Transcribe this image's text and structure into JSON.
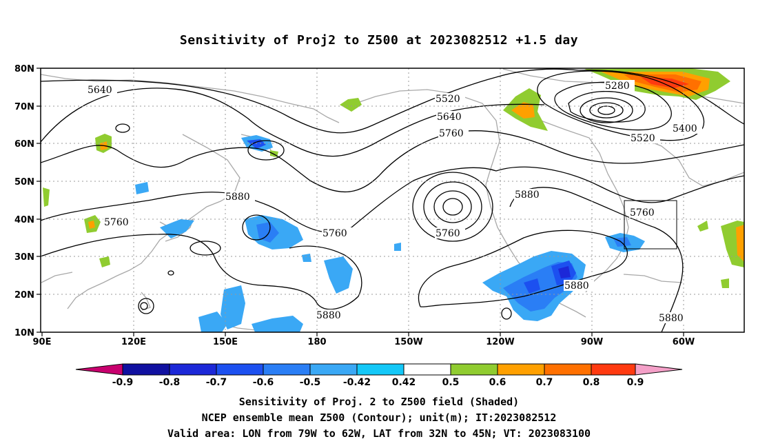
{
  "title": "Sensitivity of Proj2 to Z500 at 2023082512 +1.5 day",
  "axes": {
    "lat_labels": [
      "80N",
      "70N",
      "60N",
      "50N",
      "40N",
      "30N",
      "20N",
      "10N"
    ],
    "lon_labels": [
      "90E",
      "120E",
      "150E",
      "180",
      "150W",
      "120W",
      "90W",
      "60W"
    ]
  },
  "contour_labels": [
    {
      "text": "5640"
    },
    {
      "text": "5760"
    },
    {
      "text": "5880"
    },
    {
      "text": "5760"
    },
    {
      "text": "5880"
    },
    {
      "text": "5520"
    },
    {
      "text": "5640"
    },
    {
      "text": "5760"
    },
    {
      "text": "5760"
    },
    {
      "text": "5880"
    },
    {
      "text": "5280"
    },
    {
      "text": "5400"
    },
    {
      "text": "5520"
    },
    {
      "text": "5760"
    },
    {
      "text": "5880"
    },
    {
      "text": "5880"
    }
  ],
  "colorbar": {
    "labels": [
      "-0.9",
      "-0.8",
      "-0.7",
      "-0.6",
      "-0.5",
      "-0.42",
      "0.42",
      "0.5",
      "0.6",
      "0.7",
      "0.8",
      "0.9"
    ],
    "colors": [
      "#c8006e",
      "#1010a0",
      "#1c28d8",
      "#1c50f0",
      "#2a7ef5",
      "#3aa8f5",
      "#14c8f8",
      "#ffffff",
      "#90cc30",
      "#ffa000",
      "#ff7000",
      "#ff3a10",
      "#ff0000",
      "#f4a0c8"
    ]
  },
  "caption": [
    "Sensitivity of Proj. 2 to Z500 field (Shaded)",
    "NCEP ensemble mean Z500 (Contour); unit(m); IT:2023082512",
    "Valid area: LON from 79W to 62W, LAT from 32N to 45N; VT: 2023083100"
  ]
}
